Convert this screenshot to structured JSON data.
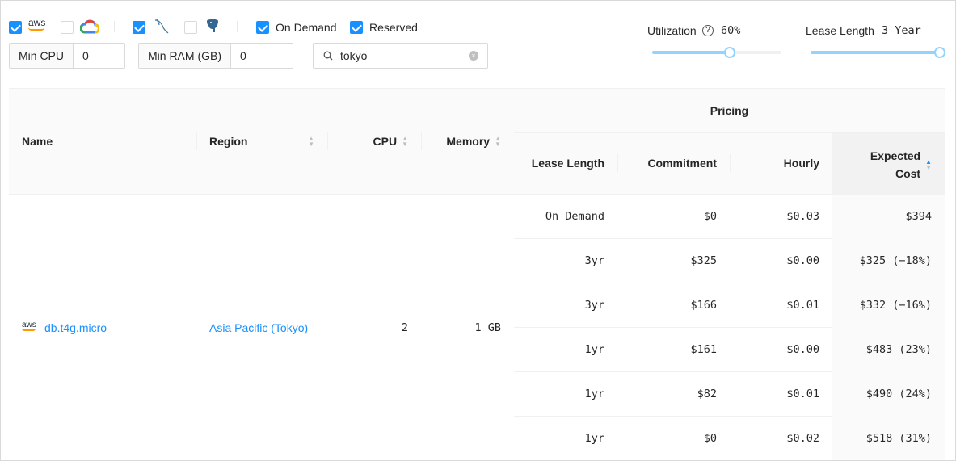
{
  "filters": {
    "providers": [
      {
        "name": "aws",
        "checked": true
      },
      {
        "name": "google-cloud",
        "checked": false
      }
    ],
    "engines": [
      {
        "name": "mysql",
        "checked": true
      },
      {
        "name": "postgresql",
        "checked": false
      }
    ],
    "on_demand": {
      "label": "On Demand",
      "checked": true
    },
    "reserved": {
      "label": "Reserved",
      "checked": true
    },
    "min_cpu": {
      "label": "Min CPU",
      "value": "0"
    },
    "min_ram": {
      "label": "Min RAM (GB)",
      "value": "0"
    },
    "search": {
      "value": "tokyo"
    },
    "utilization": {
      "label": "Utilization",
      "value": "60%",
      "percent": 60
    },
    "lease_length": {
      "label": "Lease Length",
      "value": "3 Year",
      "percent": 100
    }
  },
  "table": {
    "group_header": "Pricing",
    "columns": {
      "name": "Name",
      "region": "Region",
      "cpu": "CPU",
      "memory": "Memory",
      "lease": "Lease Length",
      "commitment": "Commitment",
      "hourly": "Hourly",
      "expected": "Expected Cost"
    },
    "instance": {
      "provider_logo": "aws",
      "name": "db.t4g.micro",
      "region": "Asia Pacific (Tokyo)",
      "cpu": "2",
      "memory": "1 GB"
    },
    "pricing_rows": [
      {
        "lease": "On Demand",
        "commitment": "$0",
        "hourly": "$0.03",
        "expected": "$394"
      },
      {
        "lease": "3yr",
        "commitment": "$325",
        "hourly": "$0.00",
        "expected": "$325 (−18%)"
      },
      {
        "lease": "3yr",
        "commitment": "$166",
        "hourly": "$0.01",
        "expected": "$332 (−16%)"
      },
      {
        "lease": "1yr",
        "commitment": "$161",
        "hourly": "$0.00",
        "expected": "$483 (23%)"
      },
      {
        "lease": "1yr",
        "commitment": "$82",
        "hourly": "$0.01",
        "expected": "$490 (24%)"
      },
      {
        "lease": "1yr",
        "commitment": "$0",
        "hourly": "$0.02",
        "expected": "$518 (31%)"
      }
    ]
  },
  "colors": {
    "accent": "#1890ff",
    "slider": "#91d5ff"
  }
}
